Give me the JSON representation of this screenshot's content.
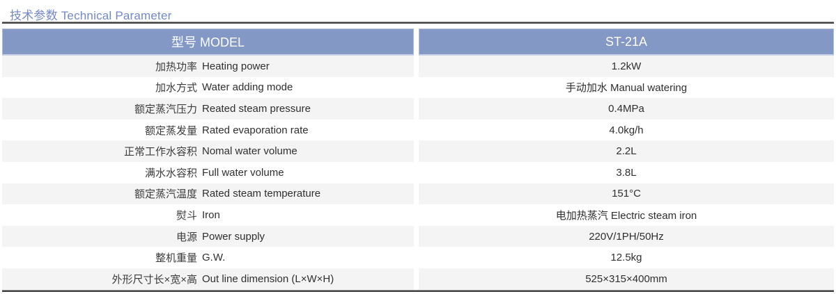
{
  "page_title": "技术参数 Technical Parameter",
  "colors": {
    "header_bg": "#8398C4",
    "title_text": "#7489C6",
    "alt_row_bg": "#F4F4F4",
    "rule_dark": "#3F3F3F"
  },
  "table": {
    "header": {
      "model": "型号 MODEL",
      "value": "ST-21A"
    },
    "rows": [
      {
        "zh": "加热功率",
        "en": "Heating power",
        "value": "1.2kW"
      },
      {
        "zh": "加水方式",
        "en": "Water adding mode",
        "value": "手动加水 Manual watering"
      },
      {
        "zh": "额定蒸汽压力",
        "en": "Reated steam pressure",
        "value": "0.4MPa"
      },
      {
        "zh": "额定蒸发量",
        "en": "Rated evaporation rate",
        "value": "4.0kg/h"
      },
      {
        "zh": "正常工作水容积",
        "en": "Nomal water volume",
        "value": "2.2L"
      },
      {
        "zh": "满水水容积",
        "en": "Full water volume",
        "value": "3.8L"
      },
      {
        "zh": "额定蒸汽温度",
        "en": "Rated steam temperature",
        "value": "151°C"
      },
      {
        "zh": "熨斗",
        "en": "Iron",
        "value": "电加热蒸汽 Electric steam iron"
      },
      {
        "zh": "电源",
        "en": "Power supply",
        "value": "220V/1PH/50Hz"
      },
      {
        "zh": "整机重量",
        "en": "G.W.",
        "value": "12.5kg"
      },
      {
        "zh": "外形尺寸长×宽×高",
        "en": "Out line dimension (L×W×H)",
        "value": "525×315×400mm"
      }
    ]
  }
}
